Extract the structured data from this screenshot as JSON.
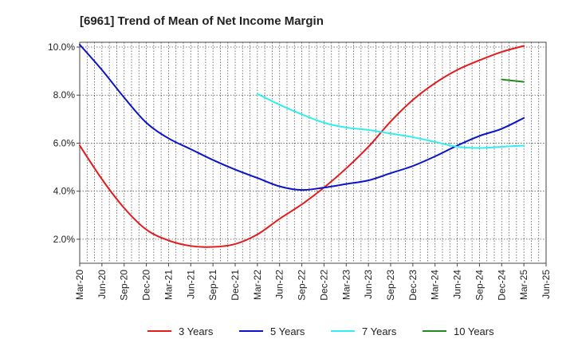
{
  "chart_data": {
    "type": "line",
    "title": "[6961]  Trend of Mean of Net Income Margin",
    "xlabel": "",
    "ylabel": "",
    "categories": [
      "Mar-20",
      "Jun-20",
      "Sep-20",
      "Dec-20",
      "Mar-21",
      "Jun-21",
      "Sep-21",
      "Dec-21",
      "Mar-22",
      "Jun-22",
      "Sep-22",
      "Dec-22",
      "Mar-23",
      "Jun-23",
      "Sep-23",
      "Dec-23",
      "Mar-24",
      "Jun-24",
      "Sep-24",
      "Dec-24",
      "Mar-25",
      "Jun-25"
    ],
    "yticks": [
      2.0,
      4.0,
      6.0,
      8.0,
      10.0
    ],
    "ytick_labels": [
      "2.0%",
      "4.0%",
      "6.0%",
      "8.0%",
      "10.0%"
    ],
    "ylim": [
      1.0,
      10.2
    ],
    "grid": true,
    "legend_position": "bottom",
    "series": [
      {
        "name": "3 Years",
        "color": "#e41a1c",
        "values": [
          5.9,
          4.5,
          3.3,
          2.4,
          1.95,
          1.72,
          1.68,
          1.8,
          2.2,
          2.85,
          3.45,
          4.15,
          4.95,
          5.85,
          6.9,
          7.8,
          8.5,
          9.05,
          9.45,
          9.8,
          10.05,
          null
        ]
      },
      {
        "name": "5 Years",
        "color": "#0a14c8",
        "values": [
          10.1,
          9.05,
          7.9,
          6.85,
          6.2,
          5.75,
          5.3,
          4.9,
          4.55,
          4.2,
          4.05,
          4.15,
          4.3,
          4.45,
          4.75,
          5.05,
          5.45,
          5.9,
          6.3,
          6.6,
          7.05,
          null
        ]
      },
      {
        "name": "7 Years",
        "color": "#33eeee",
        "values": [
          null,
          null,
          null,
          null,
          null,
          null,
          null,
          null,
          8.05,
          7.6,
          7.2,
          6.85,
          6.65,
          6.55,
          6.4,
          6.25,
          6.05,
          5.85,
          5.8,
          5.85,
          5.9,
          null
        ]
      },
      {
        "name": "10 Years",
        "color": "#228b22",
        "values": [
          null,
          null,
          null,
          null,
          null,
          null,
          null,
          null,
          null,
          null,
          null,
          null,
          null,
          null,
          null,
          null,
          null,
          null,
          null,
          8.65,
          8.55,
          null
        ]
      }
    ]
  }
}
